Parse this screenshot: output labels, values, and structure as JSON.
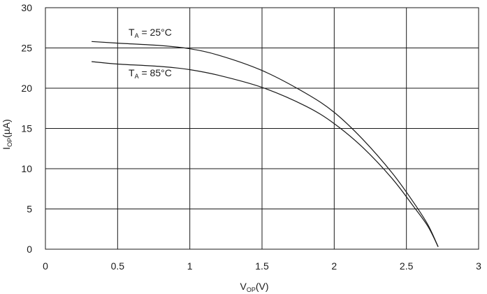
{
  "chart_data": {
    "type": "line",
    "title": "",
    "xlabel": {
      "main": "V",
      "sub": "OP",
      "unit": "(V)"
    },
    "ylabel": {
      "main": "I",
      "sub": "OP",
      "unit": "(µA)"
    },
    "xlim": [
      0,
      3
    ],
    "ylim": [
      0,
      30
    ],
    "x_ticks": [
      "0",
      "0.5",
      "1",
      "1.5",
      "2",
      "2.5",
      "3"
    ],
    "y_ticks": [
      "0",
      "5",
      "10",
      "15",
      "20",
      "25",
      "30"
    ],
    "grid": true,
    "series": [
      {
        "annotation": {
          "main": "T",
          "sub": "A",
          "rest": " = 25°C"
        },
        "color": "#1a1a1a",
        "x": [
          0.32,
          0.5,
          0.8,
          1.0,
          1.2,
          1.5,
          1.8,
          2.0,
          2.2,
          2.4,
          2.55,
          2.65,
          2.72
        ],
        "y": [
          25.8,
          25.6,
          25.3,
          24.9,
          24.1,
          22.2,
          19.4,
          17.0,
          13.6,
          9.5,
          5.8,
          3.0,
          0.3
        ]
      },
      {
        "annotation": {
          "main": "T",
          "sub": "A",
          "rest": " = 85°C"
        },
        "color": "#1a1a1a",
        "x": [
          0.32,
          0.5,
          0.8,
          1.0,
          1.2,
          1.5,
          1.8,
          2.0,
          2.2,
          2.4,
          2.55,
          2.65,
          2.72
        ],
        "y": [
          23.3,
          23.0,
          22.7,
          22.3,
          21.6,
          20.1,
          17.8,
          15.6,
          12.6,
          8.8,
          5.3,
          2.8,
          0.3
        ]
      }
    ]
  }
}
